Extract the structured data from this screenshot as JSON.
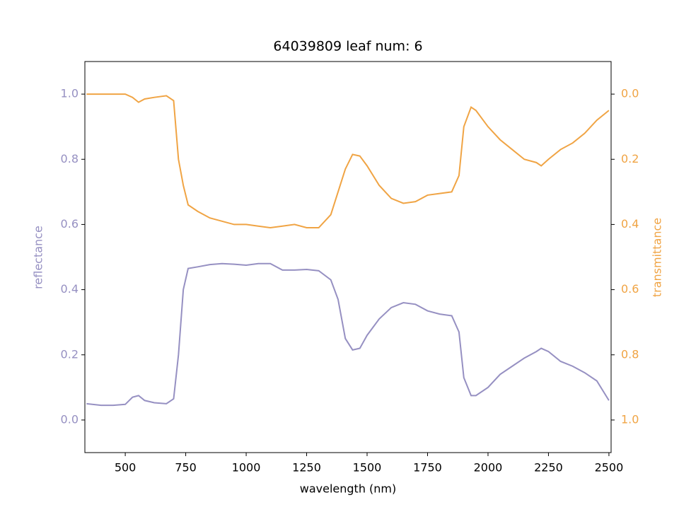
{
  "chart_data": {
    "type": "line",
    "title": "64039809 leaf num: 6",
    "xlabel": "wavelength (nm)",
    "ylabel": "reflectance",
    "y2label": "transmittance",
    "x": [
      340,
      400,
      450,
      500,
      530,
      555,
      580,
      620,
      670,
      700,
      720,
      740,
      760,
      800,
      850,
      900,
      950,
      1000,
      1050,
      1100,
      1150,
      1200,
      1250,
      1300,
      1350,
      1380,
      1410,
      1440,
      1470,
      1500,
      1550,
      1600,
      1650,
      1700,
      1750,
      1800,
      1850,
      1880,
      1900,
      1930,
      1950,
      2000,
      2050,
      2100,
      2150,
      2200,
      2220,
      2250,
      2300,
      2350,
      2400,
      2450,
      2500
    ],
    "series": [
      {
        "name": "reflectance",
        "color": "#9690c2",
        "axis": "y",
        "values": [
          0.05,
          0.045,
          0.045,
          0.048,
          0.07,
          0.075,
          0.06,
          0.053,
          0.05,
          0.065,
          0.2,
          0.4,
          0.465,
          0.47,
          0.477,
          0.48,
          0.478,
          0.475,
          0.48,
          0.48,
          0.46,
          0.46,
          0.462,
          0.458,
          0.43,
          0.37,
          0.25,
          0.215,
          0.22,
          0.26,
          0.31,
          0.345,
          0.36,
          0.355,
          0.335,
          0.325,
          0.32,
          0.27,
          0.13,
          0.075,
          0.075,
          0.1,
          0.14,
          0.165,
          0.19,
          0.21,
          0.22,
          0.21,
          0.18,
          0.165,
          0.145,
          0.12,
          0.06
        ]
      },
      {
        "name": "transmittance",
        "color": "#f0a444",
        "axis": "y2",
        "values": [
          0.0,
          0.0,
          0.0,
          0.0,
          0.01,
          0.025,
          0.015,
          0.01,
          0.005,
          0.02,
          0.2,
          0.28,
          0.34,
          0.36,
          0.38,
          0.39,
          0.4,
          0.4,
          0.405,
          0.41,
          0.405,
          0.4,
          0.41,
          0.41,
          0.37,
          0.3,
          0.23,
          0.185,
          0.19,
          0.22,
          0.28,
          0.32,
          0.335,
          0.33,
          0.31,
          0.305,
          0.3,
          0.25,
          0.1,
          0.04,
          0.05,
          0.1,
          0.14,
          0.17,
          0.2,
          0.21,
          0.22,
          0.2,
          0.17,
          0.15,
          0.12,
          0.08,
          0.05
        ]
      }
    ],
    "xlim": [
      333,
      2509
    ],
    "xticks": [
      500,
      750,
      1000,
      1250,
      1500,
      1750,
      2000,
      2250,
      2500
    ],
    "ylim": [
      -0.1,
      1.1
    ],
    "yticks": [
      {
        "value": 0,
        "label": "0.0"
      },
      {
        "value": 0.2,
        "label": "0.2"
      },
      {
        "value": 0.4,
        "label": "0.4"
      },
      {
        "value": 0.6,
        "label": "0.6"
      },
      {
        "value": 0.8,
        "label": "0.8"
      },
      {
        "value": 1,
        "label": "1.0"
      }
    ],
    "y2lim": [
      1.1,
      -0.1
    ],
    "y2ticks": [
      {
        "value": 0,
        "label": "0.0"
      },
      {
        "value": 0.2,
        "label": "0.2"
      },
      {
        "value": 0.4,
        "label": "0.4"
      },
      {
        "value": 0.6,
        "label": "0.6"
      },
      {
        "value": 0.8,
        "label": "0.8"
      },
      {
        "value": 1,
        "label": "1.0"
      }
    ]
  }
}
